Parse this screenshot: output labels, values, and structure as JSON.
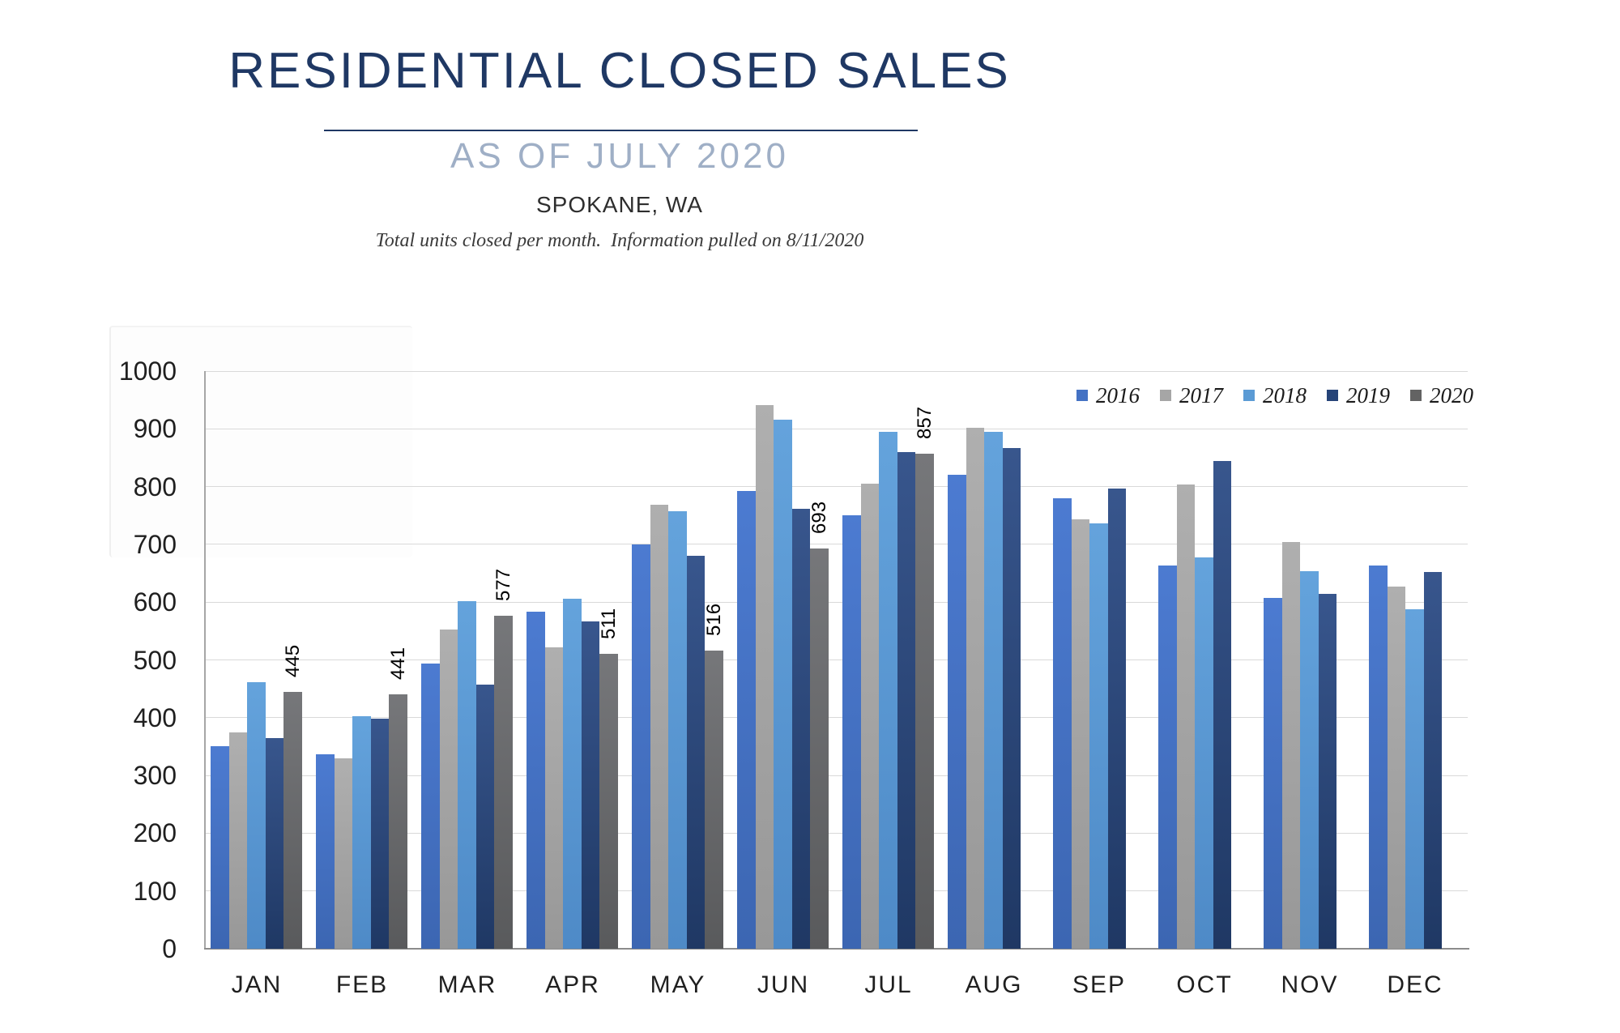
{
  "header": {
    "title": "RESIDENTIAL CLOSED SALES",
    "subtitle": "AS OF JULY 2020",
    "location": "SPOKANE, WA",
    "note": "Total units closed per month.  Information pulled on 8/11/2020"
  },
  "colors": {
    "title_navy": "#1F3864",
    "subtitle_blue": "#9FAFC6",
    "gridline": "#D9D9D9",
    "axis": "#8C8C8C"
  },
  "chart_data": {
    "type": "bar",
    "title": "Residential Closed Sales - Spokane, WA - as of July 2020",
    "xlabel": "",
    "ylabel": "",
    "ylim": [
      0,
      1000
    ],
    "y_ticks": [
      0,
      100,
      200,
      300,
      400,
      500,
      600,
      700,
      800,
      900,
      1000
    ],
    "grid": "horizontal",
    "legend_position": "top-right-inside",
    "categories": [
      "JAN",
      "FEB",
      "MAR",
      "APR",
      "MAY",
      "JUN",
      "JUL",
      "AUG",
      "SEP",
      "OCT",
      "NOV",
      "DEC"
    ],
    "series": [
      {
        "name": "2016",
        "color": "#4472C4",
        "color_top": "#4C7BD1",
        "color_bottom": "#3C66B2",
        "show_labels": false,
        "values": [
          350,
          337,
          493,
          583,
          700,
          792,
          751,
          820,
          780,
          663,
          607,
          663
        ]
      },
      {
        "name": "2017",
        "color": "#A6A6A6",
        "color_top": "#AFAFAF",
        "color_bottom": "#989898",
        "show_labels": false,
        "values": [
          375,
          330,
          553,
          522,
          768,
          941,
          805,
          902,
          743,
          803,
          704,
          627
        ]
      },
      {
        "name": "2018",
        "color": "#5B9BD5",
        "color_top": "#64A3DC",
        "color_bottom": "#4E8AC7",
        "show_labels": false,
        "values": [
          462,
          402,
          601,
          606,
          757,
          916,
          895,
          895,
          736,
          678,
          654,
          587
        ]
      },
      {
        "name": "2019",
        "color": "#264478",
        "color_top": "#38568D",
        "color_bottom": "#1F3864",
        "show_labels": false,
        "values": [
          364,
          399,
          457,
          566,
          680,
          761,
          860,
          867,
          797,
          845,
          614,
          652
        ]
      },
      {
        "name": "2020",
        "color": "#636363",
        "color_top": "#76777A",
        "color_bottom": "#595A5C",
        "show_labels": true,
        "values": [
          445,
          441,
          577,
          511,
          516,
          693,
          857,
          null,
          null,
          null,
          null,
          null
        ]
      }
    ]
  }
}
